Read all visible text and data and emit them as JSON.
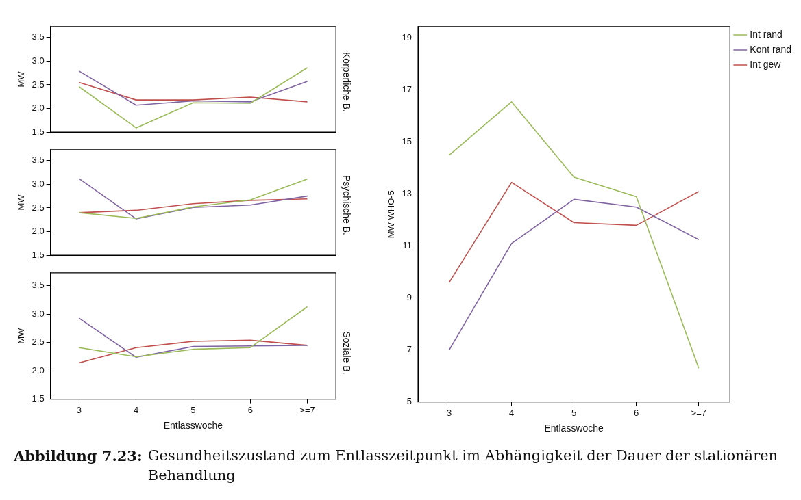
{
  "chart_data": [
    {
      "type": "line",
      "y2label": "Körperliche B.",
      "ylabel": "MW",
      "categories": [
        null,
        null,
        null,
        null,
        null
      ],
      "ylim": [
        1.5,
        3.73
      ],
      "yticks": [
        {
          "value": 1.5,
          "label": "1,5"
        },
        {
          "value": 2,
          "label": "2,0"
        },
        {
          "value": 2.5,
          "label": "2,5"
        },
        {
          "value": 3,
          "label": "3,0"
        },
        {
          "value": 3.5,
          "label": "3,5"
        }
      ],
      "grid": false,
      "legend": false,
      "tick_labels": "y",
      "series": [
        {
          "color": "#9bbb59",
          "values": [
            2.46,
            1.59,
            2.12,
            2.11,
            2.86
          ]
        },
        {
          "color": "#8064a2",
          "values": [
            2.79,
            2.07,
            2.16,
            2.14,
            2.57
          ]
        },
        {
          "color": "#c0504d",
          "values": [
            2.55,
            2.18,
            2.18,
            2.24,
            2.14
          ]
        }
      ]
    },
    {
      "type": "line",
      "y2label": "Psychische B.",
      "ylabel": "MW",
      "categories": [
        null,
        null,
        null,
        null,
        null
      ],
      "ylim": [
        1.5,
        3.73
      ],
      "yticks": [
        {
          "value": 1.5,
          "label": "1,5"
        },
        {
          "value": 2,
          "label": "2,0"
        },
        {
          "value": 2.5,
          "label": "2,5"
        },
        {
          "value": 3,
          "label": "3,0"
        },
        {
          "value": 3.5,
          "label": "3,5"
        }
      ],
      "grid": false,
      "legend": false,
      "tick_labels": "y",
      "series": [
        {
          "color": "#9bbb59",
          "values": [
            2.4,
            2.28,
            2.52,
            2.67,
            3.11
          ]
        },
        {
          "color": "#8064a2",
          "values": [
            3.12,
            2.27,
            2.51,
            2.56,
            2.75
          ]
        },
        {
          "color": "#c0504d",
          "values": [
            2.4,
            2.45,
            2.59,
            2.66,
            2.69
          ]
        }
      ]
    },
    {
      "type": "line",
      "y2label": "Soziale B.",
      "xlabel": "Entlasswoche",
      "ylabel": "MW",
      "categories": [
        "3",
        "4",
        "5",
        "6",
        ">=7"
      ],
      "ylim": [
        1.5,
        3.73
      ],
      "yticks": [
        {
          "value": 1.5,
          "label": "1,5"
        },
        {
          "value": 2,
          "label": "2,0"
        },
        {
          "value": 2.5,
          "label": "2,5"
        },
        {
          "value": 3,
          "label": "3,0"
        },
        {
          "value": 3.5,
          "label": "3,5"
        }
      ],
      "grid": false,
      "legend": false,
      "series": [
        {
          "color": "#9bbb59",
          "values": [
            2.41,
            2.25,
            2.38,
            2.41,
            3.13
          ]
        },
        {
          "color": "#8064a2",
          "values": [
            2.93,
            2.24,
            2.43,
            2.44,
            2.45
          ]
        },
        {
          "color": "#c0504d",
          "values": [
            2.14,
            2.41,
            2.52,
            2.54,
            2.45
          ]
        }
      ]
    },
    {
      "type": "line",
      "xlabel": "Entlasswoche",
      "ylabel": "MW WHO-5",
      "categories": [
        "3",
        "4",
        "5",
        "6",
        ">=7"
      ],
      "ylim": [
        5,
        19.45
      ],
      "yticks": [
        5,
        7,
        9,
        11,
        13,
        15,
        17,
        19
      ],
      "grid": false,
      "legend": "right",
      "annotations": [
        "Abbildung 7.23:",
        "Gesundheitszustand zum Entlasszeitpunkt im Abhängigkeit der Dauer der stationären Behandlung"
      ],
      "series": [
        {
          "name": "Int rand",
          "color": "#9bbb59",
          "values": [
            14.5,
            16.55,
            13.65,
            12.9,
            6.3
          ]
        },
        {
          "name": "Kont rand",
          "color": "#8064a2",
          "values": [
            7.0,
            11.1,
            12.8,
            12.5,
            11.25
          ]
        },
        {
          "name": "Int gew",
          "color": "#c0504d",
          "values": [
            9.6,
            13.45,
            11.9,
            11.8,
            13.1
          ]
        }
      ]
    }
  ]
}
